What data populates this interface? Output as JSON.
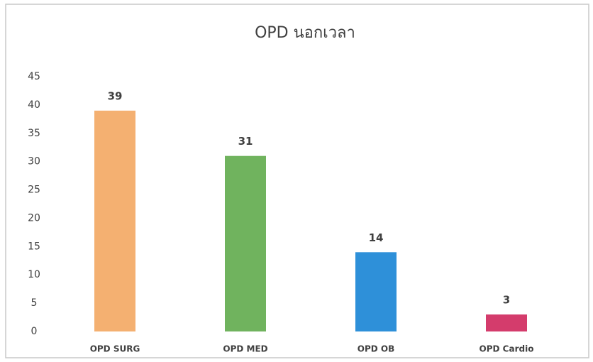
{
  "chart_data": {
    "type": "bar",
    "title": "OPD นอกเวลา",
    "categories": [
      "OPD SURG",
      "OPD MED",
      "OPD OB",
      "OPD Cardio"
    ],
    "values": [
      39,
      31,
      14,
      3
    ],
    "colors": [
      "#f4b071",
      "#70b35e",
      "#2e90d9",
      "#d43c6c"
    ],
    "ylim": [
      0,
      45
    ],
    "yticks": [
      0,
      5,
      10,
      15,
      20,
      25,
      30,
      35,
      40,
      45
    ],
    "grid": false
  }
}
